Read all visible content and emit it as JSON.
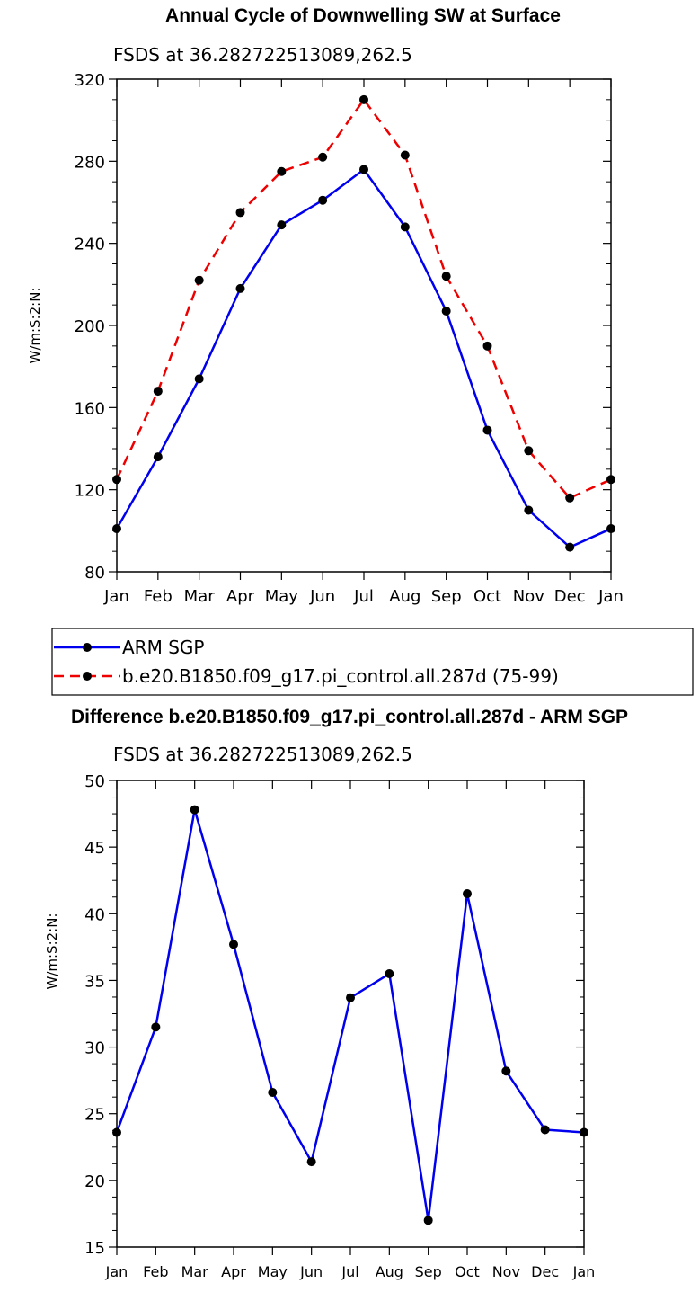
{
  "colors": {
    "arm": "#0000ee",
    "model": "#ee0000",
    "marker": "#000000"
  },
  "chart_data": [
    {
      "type": "line",
      "title": "Annual Cycle of Downwelling SW at Surface",
      "subtitle": "FSDS at 36.282722513089,262.5",
      "ylabel": "W/m:S:2:N:",
      "xlabel": "",
      "categories": [
        "Jan",
        "Feb",
        "Mar",
        "Apr",
        "May",
        "Jun",
        "Jul",
        "Aug",
        "Sep",
        "Oct",
        "Nov",
        "Dec",
        "Jan"
      ],
      "ylim": [
        80,
        320
      ],
      "yticks": [
        80,
        120,
        160,
        200,
        240,
        280,
        320
      ],
      "series": [
        {
          "name": "ARM SGP",
          "style": "solid",
          "color": "#0000ee",
          "values": [
            101,
            136,
            174,
            218,
            249,
            261,
            276,
            248,
            207,
            149,
            110,
            92,
            101
          ]
        },
        {
          "name": "b.e20.B1850.f09_g17.pi_control.all.287d (75-99)",
          "style": "dashed",
          "color": "#ee0000",
          "values": [
            125,
            168,
            222,
            255,
            275,
            282,
            310,
            283,
            224,
            190,
            139,
            116,
            125
          ]
        }
      ],
      "legend": {
        "position": "below"
      }
    },
    {
      "type": "line",
      "title": "Difference b.e20.B1850.f09_g17.pi_control.all.287d - ARM SGP",
      "subtitle": "FSDS at 36.282722513089,262.5",
      "ylabel": "W/m:S:2:N:",
      "xlabel": "",
      "categories": [
        "Jan",
        "Feb",
        "Mar",
        "Apr",
        "May",
        "Jun",
        "Jul",
        "Aug",
        "Sep",
        "Oct",
        "Nov",
        "Dec",
        "Jan"
      ],
      "ylim": [
        15,
        50
      ],
      "yticks": [
        15,
        20,
        25,
        30,
        35,
        40,
        45,
        50
      ],
      "series": [
        {
          "name": "Difference",
          "style": "solid",
          "color": "#0000ee",
          "values": [
            23.6,
            31.5,
            47.8,
            37.7,
            26.6,
            21.4,
            33.7,
            35.5,
            17.0,
            41.5,
            28.2,
            23.8,
            23.6
          ]
        }
      ]
    }
  ]
}
